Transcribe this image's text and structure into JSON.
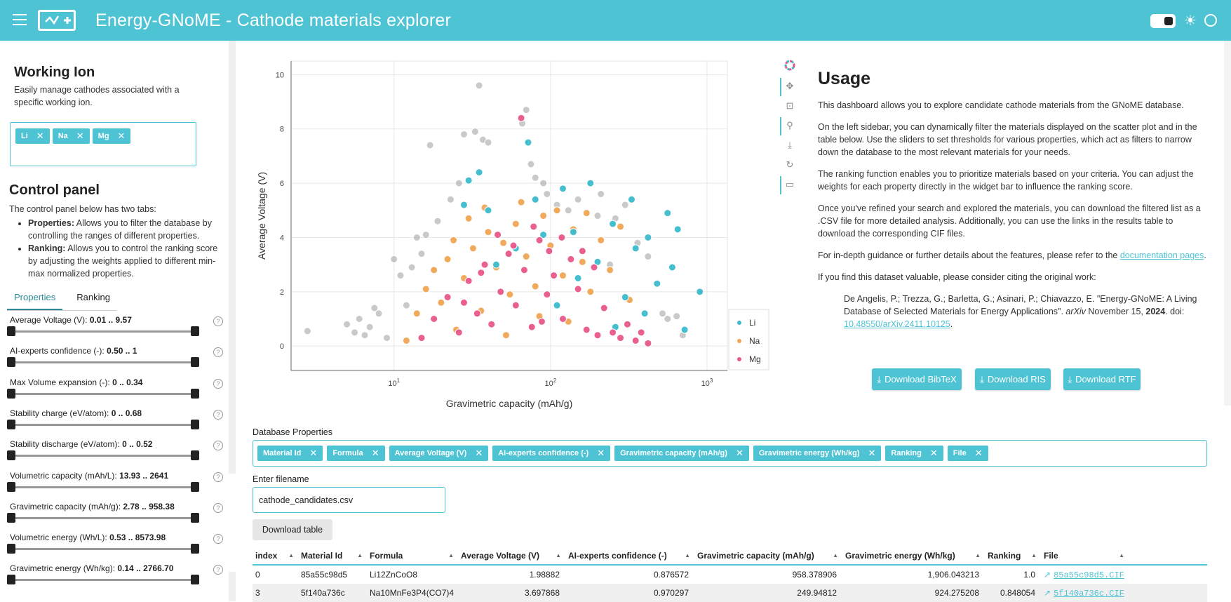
{
  "header": {
    "title": "Energy-GNoME  -  Cathode materials explorer"
  },
  "sidebar": {
    "working_ion": {
      "title": "Working Ion",
      "description": "Easily manage cathodes associated with a specific working ion.",
      "chips": [
        "Li",
        "Na",
        "Mg"
      ]
    },
    "control_panel": {
      "title": "Control panel",
      "intro": "The control panel below has two tabs:",
      "bullets": [
        {
          "bold": "Properties:",
          "text": " Allows you to filter the database by controlling the ranges of different properties."
        },
        {
          "bold": "Ranking:",
          "text": " Allows you to control the ranking score by adjusting the weights applied to different min-max normalized properties."
        }
      ]
    },
    "tabs": [
      "Properties",
      "Ranking"
    ],
    "sliders": [
      {
        "label": "Average Voltage (V): ",
        "value": "0.01 .. 9.57"
      },
      {
        "label": "AI-experts confidence (-): ",
        "value": "0.50 .. 1"
      },
      {
        "label": "Max Volume expansion (-): ",
        "value": "0 .. 0.34"
      },
      {
        "label": "Stability charge (eV/atom): ",
        "value": "0 .. 0.68"
      },
      {
        "label": "Stability discharge (eV/atom): ",
        "value": "0 .. 0.52"
      },
      {
        "label": "Volumetric capacity (mAh/L): ",
        "value": "13.93 .. 2641"
      },
      {
        "label": "Gravimetric capacity (mAh/g): ",
        "value": "2.78 .. 958.38"
      },
      {
        "label": "Volumetric energy (Wh/L): ",
        "value": "0.53 .. 8573.98"
      },
      {
        "label": "Gravimetric energy (Wh/kg): ",
        "value": "0.14 .. 2766.70"
      }
    ]
  },
  "chart_data": {
    "type": "scatter",
    "xlabel": "Gravimetric capacity (mAh/g)",
    "ylabel": "Average Voltage (V)",
    "xscale": "log",
    "xlim": [
      2.2,
      1350
    ],
    "ylim": [
      -0.9,
      10.5
    ],
    "x_ticks": [
      "10^1",
      "10^2",
      "10^3"
    ],
    "y_ticks": [
      "0",
      "2",
      "4",
      "6",
      "8",
      "10"
    ],
    "grid": true,
    "legend_position": "bottom-right",
    "series": [
      {
        "name": "Li",
        "color": "#3bbccc",
        "points": [
          [
            30,
            6.1
          ],
          [
            28,
            5.2
          ],
          [
            35,
            6.4
          ],
          [
            72,
            7.5
          ],
          [
            120,
            5.8
          ],
          [
            180,
            6.0
          ],
          [
            250,
            4.5
          ],
          [
            330,
            5.4
          ],
          [
            420,
            4.0
          ],
          [
            560,
            4.9
          ],
          [
            650,
            4.3
          ],
          [
            900,
            2.0
          ],
          [
            720,
            0.6
          ],
          [
            600,
            2.9
          ],
          [
            480,
            2.3
          ],
          [
            400,
            1.2
          ],
          [
            300,
            1.8
          ],
          [
            200,
            3.1
          ],
          [
            150,
            2.5
          ],
          [
            90,
            4.1
          ],
          [
            60,
            3.6
          ],
          [
            45,
            3.0
          ],
          [
            110,
            1.5
          ],
          [
            260,
            0.7
          ],
          [
            350,
            3.6
          ],
          [
            40,
            5.0
          ],
          [
            80,
            5.4
          ],
          [
            140,
            4.2
          ]
        ]
      },
      {
        "name": "Na",
        "color": "#f0a552",
        "points": [
          [
            12,
            0.2
          ],
          [
            14,
            1.2
          ],
          [
            16,
            2.1
          ],
          [
            18,
            2.8
          ],
          [
            20,
            1.6
          ],
          [
            22,
            3.2
          ],
          [
            25,
            0.6
          ],
          [
            28,
            2.5
          ],
          [
            32,
            3.6
          ],
          [
            36,
            1.3
          ],
          [
            40,
            4.2
          ],
          [
            45,
            2.9
          ],
          [
            50,
            3.8
          ],
          [
            55,
            1.9
          ],
          [
            60,
            4.5
          ],
          [
            70,
            3.3
          ],
          [
            80,
            2.2
          ],
          [
            90,
            4.8
          ],
          [
            100,
            3.7
          ],
          [
            120,
            2.6
          ],
          [
            140,
            4.3
          ],
          [
            160,
            3.1
          ],
          [
            180,
            2.0
          ],
          [
            210,
            3.9
          ],
          [
            240,
            2.8
          ],
          [
            280,
            4.4
          ],
          [
            320,
            1.7
          ],
          [
            38,
            5.1
          ],
          [
            65,
            5.3
          ],
          [
            110,
            5.0
          ],
          [
            170,
            4.9
          ],
          [
            24,
            3.9
          ],
          [
            85,
            1.1
          ],
          [
            130,
            0.9
          ],
          [
            52,
            0.4
          ],
          [
            30,
            4.7
          ]
        ]
      },
      {
        "name": "Mg",
        "color": "#e8578a",
        "points": [
          [
            65,
            8.4
          ],
          [
            15,
            0.3
          ],
          [
            18,
            1.0
          ],
          [
            22,
            1.8
          ],
          [
            26,
            0.5
          ],
          [
            30,
            2.4
          ],
          [
            34,
            1.2
          ],
          [
            38,
            3.0
          ],
          [
            42,
            0.8
          ],
          [
            48,
            2.0
          ],
          [
            54,
            3.4
          ],
          [
            60,
            1.5
          ],
          [
            68,
            2.8
          ],
          [
            76,
            0.7
          ],
          [
            85,
            3.9
          ],
          [
            95,
            1.9
          ],
          [
            105,
            2.6
          ],
          [
            120,
            1.0
          ],
          [
            135,
            3.2
          ],
          [
            150,
            2.1
          ],
          [
            170,
            0.6
          ],
          [
            190,
            2.9
          ],
          [
            220,
            1.4
          ],
          [
            250,
            0.5
          ],
          [
            280,
            0.3
          ],
          [
            310,
            0.8
          ],
          [
            350,
            0.2
          ],
          [
            380,
            0.5
          ],
          [
            420,
            0.1
          ],
          [
            46,
            4.1
          ],
          [
            58,
            3.7
          ],
          [
            78,
            4.4
          ],
          [
            98,
            3.5
          ],
          [
            118,
            4.0
          ],
          [
            36,
            2.7
          ],
          [
            28,
            1.6
          ],
          [
            88,
            0.9
          ],
          [
            160,
            3.5
          ],
          [
            200,
            0.4
          ]
        ]
      },
      {
        "name": "",
        "color": "#888888",
        "points": [
          [
            2.8,
            0.55
          ],
          [
            5,
            0.8
          ],
          [
            5.6,
            0.5
          ],
          [
            6,
            1.0
          ],
          [
            6.5,
            0.4
          ],
          [
            7,
            0.7
          ],
          [
            8,
            1.2
          ],
          [
            9,
            0.3
          ],
          [
            10,
            3.2
          ],
          [
            11,
            2.6
          ],
          [
            12,
            1.5
          ],
          [
            13,
            2.9
          ],
          [
            14,
            4.0
          ],
          [
            15,
            3.4
          ],
          [
            17,
            7.4
          ],
          [
            19,
            4.6
          ],
          [
            23,
            5.4
          ],
          [
            26,
            6.0
          ],
          [
            33,
            7.9
          ],
          [
            35,
            9.6
          ],
          [
            37,
            7.6
          ],
          [
            40,
            7.5
          ],
          [
            70,
            8.7
          ],
          [
            66,
            8.2
          ],
          [
            75,
            6.7
          ],
          [
            80,
            6.2
          ],
          [
            95,
            5.6
          ],
          [
            110,
            5.2
          ],
          [
            130,
            5.0
          ],
          [
            210,
            5.6
          ],
          [
            260,
            4.7
          ],
          [
            300,
            5.2
          ],
          [
            360,
            3.8
          ],
          [
            420,
            3.3
          ],
          [
            520,
            1.2
          ],
          [
            560,
            1.0
          ],
          [
            640,
            1.1
          ],
          [
            700,
            0.4
          ],
          [
            200,
            4.8
          ],
          [
            240,
            3.0
          ],
          [
            150,
            5.4
          ],
          [
            90,
            6.0
          ],
          [
            28,
            7.8
          ],
          [
            16,
            4.1
          ],
          [
            7.5,
            1.4
          ]
        ]
      }
    ]
  },
  "toolbar": {
    "icons": [
      "bokeh-logo-icon",
      "pan-icon",
      "box-zoom-icon",
      "wheel-zoom-icon",
      "save-icon",
      "reset-icon",
      "hover-icon"
    ]
  },
  "usage": {
    "title": "Usage",
    "p1": "This dashboard allows you to explore candidate cathode materials from the GNoME database.",
    "p2": "On the left sidebar, you can dynamically filter the materials displayed on the scatter plot and in the table below. Use the sliders to set thresholds for various properties, which act as filters to narrow down the database to the most relevant materials for your needs.",
    "p3": "The ranking function enables you to prioritize materials based on your criteria. You can adjust the weights for each property directly in the widget bar to influence the ranking score.",
    "p4": "Once you've refined your search and explored the materials, you can download the filtered list as a .CSV file for more detailed analysis. Additionally, you can use the links in the results table to download the corresponding CIF files.",
    "p5_text": "For in-depth guidance or further details about the features, please refer to the ",
    "p5_link": "documentation pages",
    "p5_end": ".",
    "p6": "If you find this dataset valuable, please consider citing the original work:",
    "citation_text": "De Angelis, P.; Trezza, G.; Barletta, G.; Asinari, P.; Chiavazzo, E. \"Energy-GNoME: A Living Database of Selected Materials for Energy Applications\". ",
    "citation_journal": "arXiv",
    "citation_date": " November 15, ",
    "citation_year": "2024",
    "citation_doi_prefix": ". doi: ",
    "citation_doi": "10.48550/arXiv.2411.10125",
    "citation_end": ".",
    "buttons": [
      "Download BibTeX",
      "Download RIS",
      "Download RTF"
    ]
  },
  "database": {
    "label": "Database Properties",
    "chips": [
      "Material Id",
      "Formula",
      "Average Voltage (V)",
      "AI-experts confidence (-)",
      "Gravimetric capacity (mAh/g)",
      "Gravimetric energy (Wh/kg)",
      "Ranking",
      "File"
    ],
    "filename_label": "Enter filename",
    "filename_value": "cathode_candidates.csv",
    "download_table": "Download table"
  },
  "table": {
    "headers": [
      "index",
      "Material Id",
      "Formula",
      "Average Voltage (V)",
      "AI-experts confidence (-)",
      "Gravimetric capacity (mAh/g)",
      "Gravimetric energy (Wh/kg)",
      "Ranking",
      "File"
    ],
    "rows": [
      [
        "0",
        "85a55c98d5",
        "Li12ZnCoO8",
        "1.98882",
        "0.876572",
        "958.378906",
        "1,906.043213",
        "1.0",
        "85a55c98d5.CIF"
      ],
      [
        "3",
        "5f140a736c",
        "Na10MnFe3P4(CO7)4",
        "3.697868",
        "0.970297",
        "249.94812",
        "924.275208",
        "0.848054",
        "5f140a736c.CIF"
      ]
    ]
  }
}
